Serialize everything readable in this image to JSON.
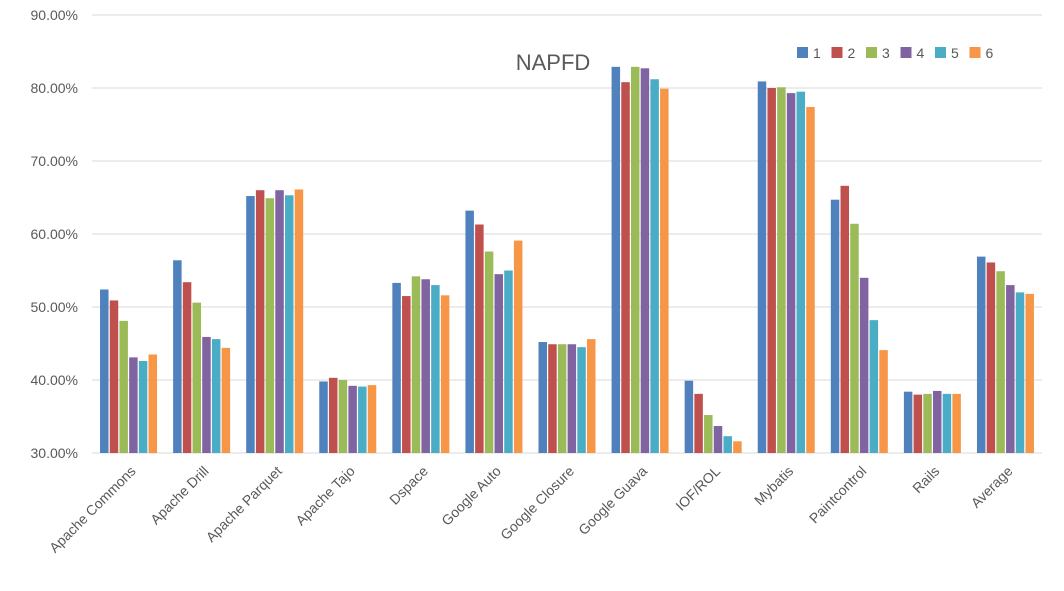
{
  "chart_data": {
    "type": "bar",
    "title": "NAPFD",
    "xlabel": "",
    "ylabel": "",
    "ylim": [
      30,
      90
    ],
    "yticks": [
      "30.00%",
      "40.00%",
      "50.00%",
      "60.00%",
      "70.00%",
      "80.00%",
      "90.00%"
    ],
    "grid": true,
    "legend_position": "top-right",
    "categories": [
      "Apache Commons",
      "Apache Drill",
      "Apache Parquet",
      "Apache Tajo",
      "Dspace",
      "Google Auto",
      "Google Closure",
      "Google Guava",
      "IOF/ROL",
      "Mybatis",
      "Paintcontrol",
      "Rails",
      "Average"
    ],
    "series": [
      {
        "name": "1",
        "color": "#4F81BD",
        "values": [
          52.4,
          56.4,
          65.2,
          39.8,
          53.3,
          63.2,
          45.2,
          82.9,
          39.9,
          80.9,
          64.7,
          38.4,
          56.9
        ]
      },
      {
        "name": "2",
        "color": "#C0504D",
        "values": [
          50.9,
          53.4,
          66.0,
          40.3,
          51.5,
          61.3,
          44.9,
          80.8,
          38.1,
          80.0,
          66.6,
          38.0,
          56.1
        ]
      },
      {
        "name": "3",
        "color": "#9BBB59",
        "values": [
          48.1,
          50.6,
          64.9,
          40.0,
          54.2,
          57.6,
          44.9,
          82.9,
          35.2,
          80.1,
          61.4,
          38.1,
          54.9
        ]
      },
      {
        "name": "4",
        "color": "#8064A2",
        "values": [
          43.1,
          45.9,
          66.0,
          39.2,
          53.8,
          54.5,
          44.9,
          82.7,
          33.7,
          79.3,
          54.0,
          38.5,
          53.0
        ]
      },
      {
        "name": "5",
        "color": "#4BACC6",
        "values": [
          42.6,
          45.6,
          65.3,
          39.1,
          53.0,
          55.0,
          44.5,
          81.2,
          32.3,
          79.5,
          48.2,
          38.1,
          52.0
        ]
      },
      {
        "name": "6",
        "color": "#F79646",
        "values": [
          43.5,
          44.4,
          66.1,
          39.3,
          51.6,
          59.1,
          45.6,
          79.9,
          31.6,
          77.4,
          44.1,
          38.1,
          51.8
        ]
      }
    ]
  }
}
